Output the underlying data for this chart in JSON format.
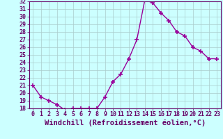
{
  "x": [
    0,
    1,
    2,
    3,
    4,
    5,
    6,
    7,
    8,
    9,
    10,
    11,
    12,
    13,
    14,
    15,
    16,
    17,
    18,
    19,
    20,
    21,
    22,
    23
  ],
  "y": [
    21.0,
    19.5,
    19.0,
    18.5,
    17.8,
    18.0,
    18.0,
    18.0,
    18.0,
    19.5,
    21.5,
    22.5,
    24.5,
    27.0,
    32.2,
    31.8,
    30.5,
    29.5,
    28.0,
    27.5,
    26.0,
    25.5,
    24.5,
    24.5
  ],
  "line_color": "#990099",
  "marker": "+",
  "marker_size": 4,
  "marker_linewidth": 1.2,
  "background_color": "#ccffff",
  "grid_color": "#aacccc",
  "xlabel": "Windchill (Refroidissement éolien,°C)",
  "xlabel_fontsize": 7.5,
  "ylim": [
    18,
    32
  ],
  "xlim": [
    -0.5,
    23.5
  ],
  "yticks": [
    18,
    19,
    20,
    21,
    22,
    23,
    24,
    25,
    26,
    27,
    28,
    29,
    30,
    31,
    32
  ],
  "xticks": [
    0,
    1,
    2,
    3,
    4,
    5,
    6,
    7,
    8,
    9,
    10,
    11,
    12,
    13,
    14,
    15,
    16,
    17,
    18,
    19,
    20,
    21,
    22,
    23
  ],
  "tick_fontsize": 6,
  "tick_color": "#660066",
  "spine_color": "#660066",
  "label_color": "#660066",
  "grid_linewidth": 0.5
}
